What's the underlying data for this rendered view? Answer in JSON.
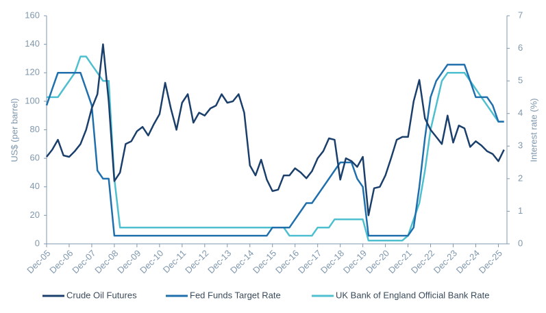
{
  "chart_data": {
    "type": "line",
    "ylabel": "US$ (per barrel)",
    "y2label": "Interest rate (%)",
    "x": [
      2005.92,
      2006.17,
      2006.42,
      2006.67,
      2006.92,
      2007.17,
      2007.42,
      2007.67,
      2007.92,
      2008.17,
      2008.42,
      2008.67,
      2008.92,
      2009.17,
      2009.42,
      2009.67,
      2009.92,
      2010.17,
      2010.42,
      2010.67,
      2010.92,
      2011.17,
      2011.42,
      2011.67,
      2011.92,
      2012.17,
      2012.42,
      2012.67,
      2012.92,
      2013.17,
      2013.42,
      2013.67,
      2013.92,
      2014.17,
      2014.42,
      2014.67,
      2014.92,
      2015.17,
      2015.42,
      2015.67,
      2015.92,
      2016.17,
      2016.42,
      2016.67,
      2016.92,
      2017.17,
      2017.42,
      2017.67,
      2017.92,
      2018.17,
      2018.42,
      2018.67,
      2018.92,
      2019.17,
      2019.42,
      2019.67,
      2019.92,
      2020.17,
      2020.42,
      2020.67,
      2020.92,
      2021.17,
      2021.42,
      2021.67,
      2021.92,
      2022.17,
      2022.42,
      2022.67,
      2022.92,
      2023.17,
      2023.42,
      2023.67,
      2023.92,
      2024.17,
      2024.42,
      2024.67,
      2024.92,
      2025.17,
      2025.42,
      2025.67,
      2025.92,
      2026.17
    ],
    "series": [
      {
        "name": "Crude Oil Futures",
        "color": "#1b3f6b",
        "axis": "y",
        "values": [
          61,
          66,
          73,
          62,
          61,
          65,
          70,
          80,
          95,
          105,
          140,
          100,
          44,
          50,
          70,
          72,
          79,
          82,
          76,
          84,
          91,
          113,
          95,
          80,
          99,
          105,
          85,
          92,
          90,
          95,
          97,
          105,
          99,
          100,
          105,
          92,
          55,
          48,
          59,
          45,
          37,
          38,
          48,
          48,
          53,
          50,
          46,
          51,
          60,
          65,
          74,
          73,
          45,
          60,
          58,
          54,
          61,
          20,
          39,
          40,
          48,
          60,
          73,
          75,
          75,
          100,
          115,
          88,
          80,
          75,
          70,
          90,
          71,
          83,
          81,
          68,
          72,
          69,
          65,
          63,
          58,
          66
        ]
      },
      {
        "name": "Fed Funds Target Rate",
        "color": "#1f6fad",
        "axis": "y2",
        "values": [
          4.25,
          4.75,
          5.25,
          5.25,
          5.25,
          5.25,
          5.25,
          4.75,
          4.25,
          2.25,
          2,
          2,
          0.25,
          0.25,
          0.25,
          0.25,
          0.25,
          0.25,
          0.25,
          0.25,
          0.25,
          0.25,
          0.25,
          0.25,
          0.25,
          0.25,
          0.25,
          0.25,
          0.25,
          0.25,
          0.25,
          0.25,
          0.25,
          0.25,
          0.25,
          0.25,
          0.25,
          0.25,
          0.25,
          0.25,
          0.5,
          0.5,
          0.5,
          0.5,
          0.75,
          1,
          1.25,
          1.25,
          1.5,
          1.75,
          2,
          2.25,
          2.5,
          2.5,
          2.5,
          2,
          1.75,
          0.25,
          0.25,
          0.25,
          0.25,
          0.25,
          0.25,
          0.25,
          0.25,
          0.5,
          1.75,
          3.25,
          4.5,
          5,
          5.25,
          5.5,
          5.5,
          5.5,
          5.5,
          5,
          4.5,
          4.5,
          4.5,
          4.25,
          3.75,
          3.75
        ]
      },
      {
        "name": "UK Bank of England Official Bank Rate",
        "color": "#4dbfcf",
        "axis": "y2",
        "values": [
          4.5,
          4.5,
          4.5,
          4.75,
          5,
          5.25,
          5.75,
          5.75,
          5.5,
          5.25,
          5,
          5,
          2,
          0.5,
          0.5,
          0.5,
          0.5,
          0.5,
          0.5,
          0.5,
          0.5,
          0.5,
          0.5,
          0.5,
          0.5,
          0.5,
          0.5,
          0.5,
          0.5,
          0.5,
          0.5,
          0.5,
          0.5,
          0.5,
          0.5,
          0.5,
          0.5,
          0.5,
          0.5,
          0.5,
          0.5,
          0.5,
          0.5,
          0.25,
          0.25,
          0.25,
          0.25,
          0.25,
          0.5,
          0.5,
          0.5,
          0.75,
          0.75,
          0.75,
          0.75,
          0.75,
          0.75,
          0.1,
          0.1,
          0.1,
          0.1,
          0.1,
          0.1,
          0.1,
          0.25,
          0.75,
          1.25,
          2.25,
          3.5,
          4.25,
          5,
          5.25,
          5.25,
          5.25,
          5.25,
          5,
          4.75,
          4.5,
          4.25,
          4,
          3.75,
          3.75
        ]
      }
    ],
    "xlim": [
      2005.92,
      2026.3
    ],
    "xticks": [
      {
        "value": 2005.92,
        "label": "Dec-05"
      },
      {
        "value": 2006.92,
        "label": "Dec-06"
      },
      {
        "value": 2007.92,
        "label": "Dec-07"
      },
      {
        "value": 2008.92,
        "label": "Dec-08"
      },
      {
        "value": 2009.92,
        "label": "Dec-09"
      },
      {
        "value": 2010.92,
        "label": "Dec-10"
      },
      {
        "value": 2011.92,
        "label": "Dec-11"
      },
      {
        "value": 2012.92,
        "label": "Dec-12"
      },
      {
        "value": 2013.92,
        "label": "Dec-13"
      },
      {
        "value": 2014.92,
        "label": "Dec-14"
      },
      {
        "value": 2015.92,
        "label": "Dec-15"
      },
      {
        "value": 2016.92,
        "label": "Dec-16"
      },
      {
        "value": 2017.92,
        "label": "Dec-17"
      },
      {
        "value": 2018.92,
        "label": "Dec-18"
      },
      {
        "value": 2019.92,
        "label": "Dec-19"
      },
      {
        "value": 2020.92,
        "label": "Dec-20"
      },
      {
        "value": 2021.92,
        "label": "Dec-21"
      },
      {
        "value": 2022.92,
        "label": "Dec-22"
      },
      {
        "value": 2023.92,
        "label": "Dec-23"
      },
      {
        "value": 2024.92,
        "label": "Dec-24"
      },
      {
        "value": 2025.92,
        "label": "Dec-25"
      }
    ],
    "ylim": [
      0,
      160
    ],
    "yticks": [
      0,
      20,
      40,
      60,
      80,
      100,
      120,
      140,
      160
    ],
    "y2lim": [
      0,
      7
    ],
    "y2ticks": [
      0,
      1,
      2,
      3,
      4,
      5,
      6,
      7
    ],
    "grid": false,
    "legend": "bottom"
  }
}
